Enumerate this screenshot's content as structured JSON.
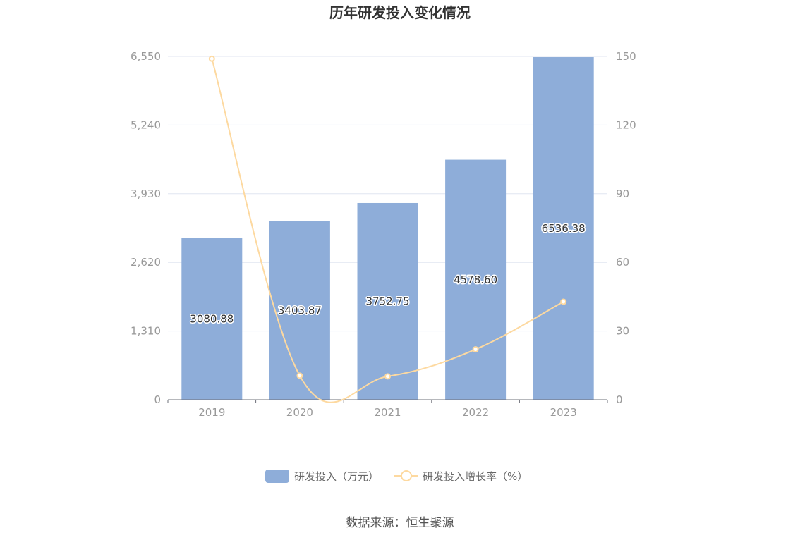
{
  "chart_data": {
    "type": "bar",
    "title": "历年研发投入变化情况",
    "categories": [
      "2019",
      "2020",
      "2021",
      "2022",
      "2023"
    ],
    "series": [
      {
        "name": "研发投入（万元）",
        "type": "bar",
        "axis": "left",
        "values": [
          3080.88,
          3403.87,
          3752.75,
          4578.6,
          6536.38
        ],
        "labels": [
          "3080.88",
          "3403.87",
          "3752.75",
          "4578.60",
          "6536.38"
        ],
        "color": "#8eadd9"
      },
      {
        "name": "研发投入增长率（%）",
        "type": "line",
        "axis": "right",
        "values": [
          149,
          10.5,
          10.2,
          22.0,
          42.8
        ],
        "color": "#fdd9a0"
      }
    ],
    "y_left": {
      "min": 0,
      "max": 6550,
      "ticks": [
        "0",
        "1,310",
        "2,620",
        "3,930",
        "5,240",
        "6,550"
      ]
    },
    "y_right": {
      "min": 0,
      "max": 150,
      "ticks": [
        "0",
        "30",
        "60",
        "90",
        "120",
        "150"
      ]
    },
    "grid": true,
    "legend_position": "bottom"
  },
  "footer": {
    "source": "数据来源：恒生聚源"
  }
}
